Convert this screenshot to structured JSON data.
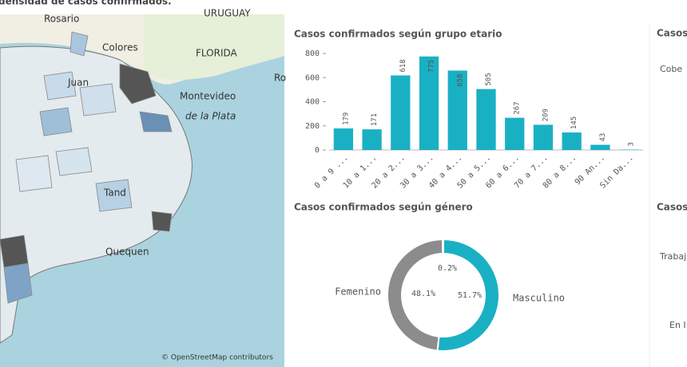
{
  "header": {
    "map_title": "densidad de casos confirmados."
  },
  "map": {
    "labels": [
      "Rosario",
      "URUGUAY",
      "Colores",
      "FLORIDA",
      "Ro",
      "Montevideo",
      "de la Plata",
      "Tand",
      "Quequen",
      "Juan"
    ],
    "attribution": "© OpenStreetMap contributors"
  },
  "right_panel": {
    "labels": [
      "Casos",
      "Cobe",
      "Casos",
      "Trabaj",
      "En I"
    ]
  },
  "chart_data": [
    {
      "type": "bar",
      "title": "Casos confirmados según grupo etario",
      "categories": [
        "0 a 9 ...",
        "10 a 1...",
        "20 a 2...",
        "30 a 3...",
        "40 a 4...",
        "50 a 5...",
        "60 a 6...",
        "70 a 7...",
        "80 a 8...",
        "90 An...",
        "Sin Da..."
      ],
      "values": [
        179,
        171,
        618,
        775,
        658,
        505,
        267,
        209,
        145,
        43,
        3
      ],
      "color": "#1ab0c4",
      "ylim": [
        0,
        800
      ],
      "yticks": [
        0,
        200,
        400,
        600,
        800
      ]
    },
    {
      "type": "donut",
      "title": "Casos confirmados según género",
      "categories": [
        "Masculino",
        "Femenino",
        null
      ],
      "values": [
        51.7,
        48.1,
        0.2
      ],
      "value_labels": [
        "51.7%",
        "48.1%",
        "0.2%"
      ],
      "colors": [
        "#1ab0c4",
        "#8c8c8c",
        "#444444"
      ]
    }
  ]
}
